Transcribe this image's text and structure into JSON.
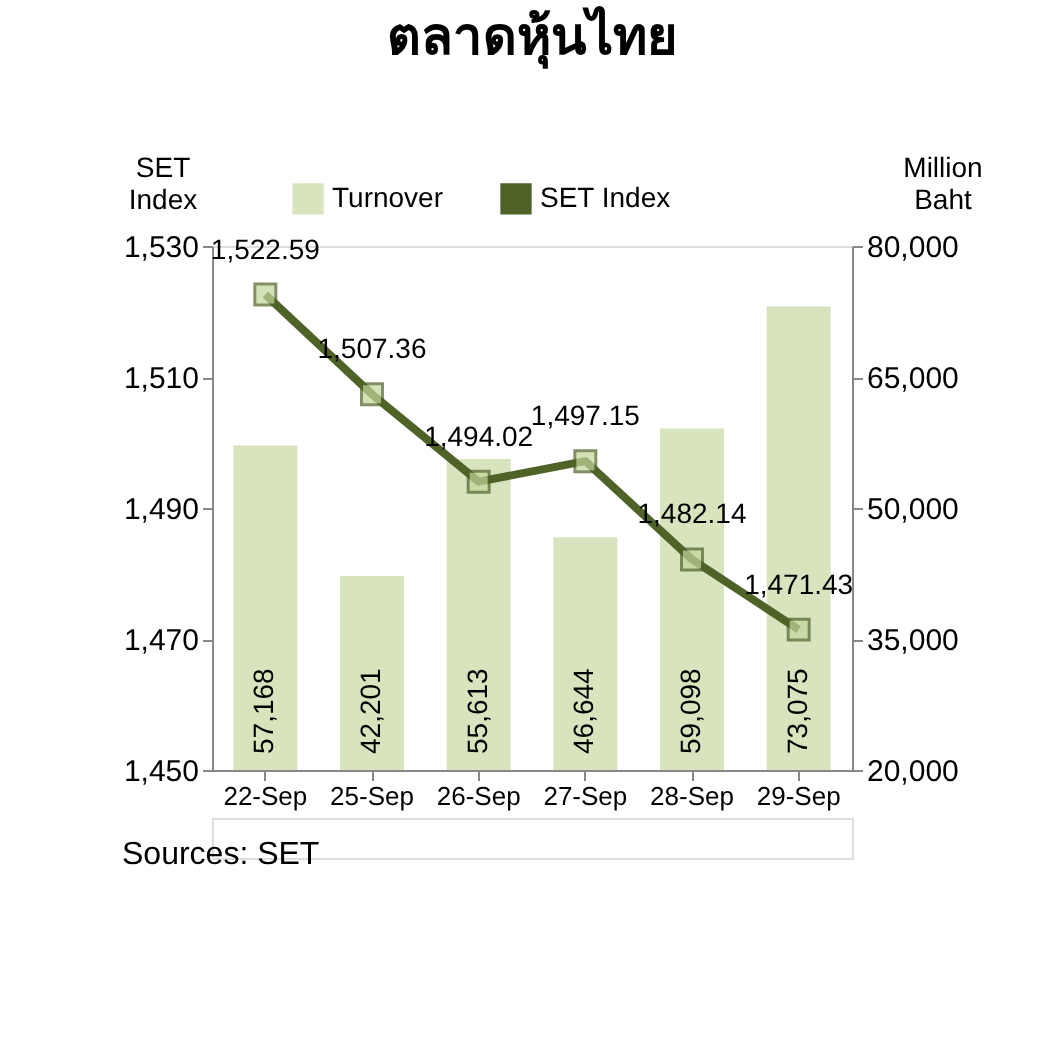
{
  "chart_data": {
    "type": "bar",
    "title": "ตลาดหุ้นไทย",
    "categories": [
      "22-Sep",
      "25-Sep",
      "26-Sep",
      "27-Sep",
      "28-Sep",
      "29-Sep"
    ],
    "series": [
      {
        "name": "Turnover",
        "axis": "y2",
        "color": "#d7e4bd",
        "values": [
          57168,
          42201,
          55613,
          46644,
          59098,
          73075
        ],
        "value_labels": [
          "57,168",
          "42,201",
          "55,613",
          "46,644",
          "59,098",
          "73,075"
        ]
      },
      {
        "name": "SET Index",
        "type": "line",
        "color": "#4f6228",
        "marker": "square",
        "values": [
          1522.59,
          1507.36,
          1494.02,
          1497.15,
          1482.14,
          1471.43
        ],
        "value_labels": [
          "1,522.59",
          "1,507.36",
          "1,494.02",
          "1,497.15",
          "1,482.14",
          "1,471.43"
        ]
      }
    ],
    "ylabel": "SET Index",
    "y2label": "Million Baht",
    "ylim": [
      1450,
      1530
    ],
    "yticks": [
      {
        "value": 1450,
        "label": "1,450"
      },
      {
        "value": 1470,
        "label": "1,470"
      },
      {
        "value": 1490,
        "label": "1,490"
      },
      {
        "value": 1510,
        "label": "1,510"
      },
      {
        "value": 1530,
        "label": "1,530"
      }
    ],
    "y2lim": [
      20000,
      80000
    ],
    "y2ticks": [
      {
        "value": 20000,
        "label": "20,000"
      },
      {
        "value": 35000,
        "label": "35,000"
      },
      {
        "value": 50000,
        "label": "50,000"
      },
      {
        "value": 65000,
        "label": "65,000"
      },
      {
        "value": 80000,
        "label": "80,000"
      }
    ],
    "grid": false,
    "legend": "top",
    "annotations": [
      "Sources: SET"
    ]
  }
}
